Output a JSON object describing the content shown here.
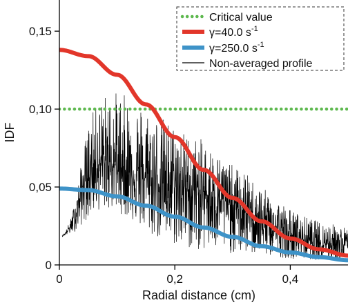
{
  "chart_data": {
    "type": "line",
    "xlabel": "Radial distance (cm)",
    "ylabel": "IDF",
    "xlim": [
      0.0,
      0.5
    ],
    "ylim": [
      0.0,
      0.17
    ],
    "x_ticks": [
      {
        "value": 0.0,
        "label": "0"
      },
      {
        "value": 0.2,
        "label": "0,2"
      },
      {
        "value": 0.4,
        "label": "0,4"
      }
    ],
    "y_ticks": [
      {
        "value": 0.0,
        "label": "0"
      },
      {
        "value": 0.05,
        "label": "0,05"
      },
      {
        "value": 0.1,
        "label": "0,10"
      },
      {
        "value": 0.15,
        "label": "0,15"
      }
    ],
    "legend_position": "top-right",
    "series": [
      {
        "name": "Critical value",
        "style": "dotted",
        "color": "#5db84e",
        "x": [
          0.0,
          0.5
        ],
        "y": [
          0.1,
          0.1
        ]
      },
      {
        "name": "γ=40.0 s",
        "name_sup": "-1",
        "style": "thick",
        "color": "#e2362a",
        "x": [
          0.0,
          0.05,
          0.1,
          0.15,
          0.2,
          0.25,
          0.3,
          0.35,
          0.4,
          0.45,
          0.5
        ],
        "y": [
          0.138,
          0.134,
          0.122,
          0.103,
          0.082,
          0.061,
          0.043,
          0.028,
          0.017,
          0.01,
          0.006
        ]
      },
      {
        "name": "γ=250.0 s",
        "name_sup": "-1",
        "style": "thick",
        "color": "#3e93c8",
        "x": [
          0.0,
          0.05,
          0.1,
          0.15,
          0.2,
          0.25,
          0.3,
          0.35,
          0.4,
          0.45,
          0.5
        ],
        "y": [
          0.049,
          0.048,
          0.044,
          0.038,
          0.031,
          0.024,
          0.018,
          0.012,
          0.008,
          0.005,
          0.003
        ]
      },
      {
        "name": "Non-averaged profile",
        "style": "thin",
        "color": "#000000",
        "noisy": true,
        "x": [
          0.005,
          0.01,
          0.02,
          0.03,
          0.04,
          0.05,
          0.06,
          0.08,
          0.1,
          0.12,
          0.14,
          0.16,
          0.18,
          0.2,
          0.22,
          0.25,
          0.28,
          0.3,
          0.32,
          0.35,
          0.38,
          0.4,
          0.42,
          0.45,
          0.48,
          0.5
        ],
        "y": [
          0.019,
          0.02,
          0.025,
          0.035,
          0.05,
          0.058,
          0.063,
          0.066,
          0.064,
          0.06,
          0.057,
          0.054,
          0.052,
          0.051,
          0.049,
          0.046,
          0.042,
          0.038,
          0.034,
          0.028,
          0.022,
          0.019,
          0.017,
          0.015,
          0.014,
          0.013
        ],
        "upper_envelope": [
          0.019,
          0.021,
          0.03,
          0.045,
          0.07,
          0.09,
          0.1,
          0.11,
          0.112,
          0.108,
          0.104,
          0.1,
          0.095,
          0.09,
          0.085,
          0.08,
          0.07,
          0.064,
          0.06,
          0.05,
          0.042,
          0.036,
          0.032,
          0.028,
          0.026,
          0.024
        ],
        "lower_envelope": [
          0.018,
          0.019,
          0.02,
          0.022,
          0.026,
          0.03,
          0.034,
          0.036,
          0.034,
          0.03,
          0.024,
          0.018,
          0.015,
          0.012,
          0.01,
          0.009,
          0.008,
          0.007,
          0.007,
          0.006,
          0.005,
          0.004,
          0.004,
          0.003,
          0.003,
          0.003
        ]
      }
    ]
  }
}
